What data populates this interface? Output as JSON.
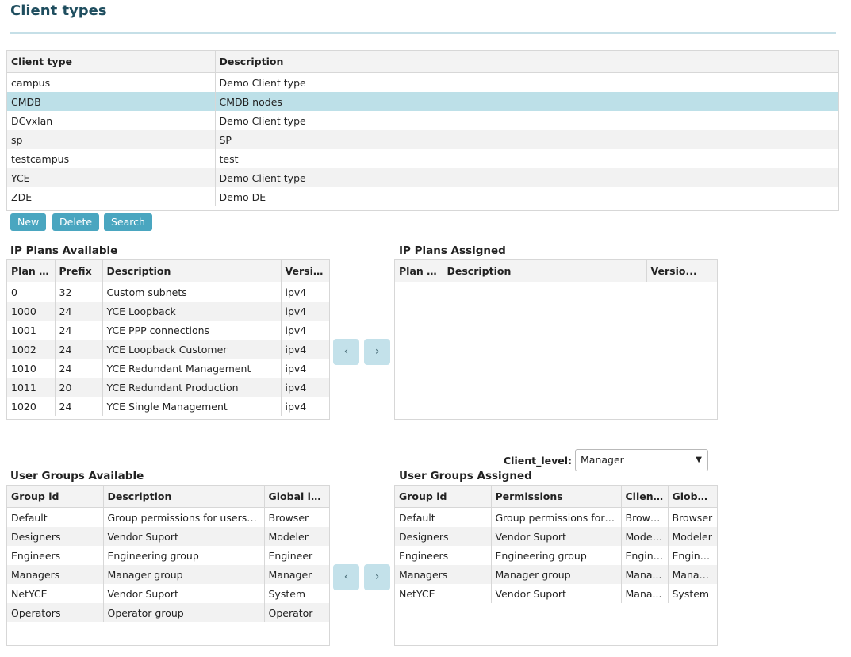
{
  "page": {
    "title": "Client types"
  },
  "client_types": {
    "columns": [
      "Client type",
      "Description"
    ],
    "rows": [
      [
        "campus",
        "Demo Client type"
      ],
      [
        "CMDB",
        "CMDB nodes"
      ],
      [
        "DCvxlan",
        "Demo Client type"
      ],
      [
        "sp",
        "SP"
      ],
      [
        "testcampus",
        "test"
      ],
      [
        "YCE",
        "Demo Client type"
      ],
      [
        "ZDE",
        "Demo DE"
      ]
    ],
    "selected_row": "CMDB"
  },
  "actions": {
    "new_label": "New",
    "delete_label": "Delete",
    "search_label": "Search"
  },
  "ip_plans_available": {
    "label": "IP Plans Available",
    "columns": [
      "Plan i...",
      "Prefix",
      "Description",
      "Versio..."
    ],
    "rows": [
      [
        "0",
        "32",
        "Custom subnets",
        "ipv4"
      ],
      [
        "1000",
        "24",
        "YCE Loopback",
        "ipv4"
      ],
      [
        "1001",
        "24",
        "YCE PPP connections",
        "ipv4"
      ],
      [
        "1002",
        "24",
        "YCE Loopback Customer",
        "ipv4"
      ],
      [
        "1010",
        "24",
        "YCE Redundant Management",
        "ipv4"
      ],
      [
        "1011",
        "20",
        "YCE Redundant Production",
        "ipv4"
      ],
      [
        "1020",
        "24",
        "YCE Single Management",
        "ipv4"
      ]
    ]
  },
  "ip_plans_assigned": {
    "label": "IP Plans Assigned",
    "columns": [
      "Plan i...",
      "Description",
      "Versio..."
    ],
    "rows": []
  },
  "move_controls": {
    "left": "‹",
    "right": "›"
  },
  "client_level": {
    "label": "Client_level:",
    "value": "Manager"
  },
  "user_groups_available": {
    "label": "User Groups Available",
    "columns": [
      "Group id",
      "Description",
      "Global lev..."
    ],
    "rows": [
      [
        "Default",
        "Group permissions for users wi...",
        "Browser"
      ],
      [
        "Designers",
        "Vendor Suport",
        "Modeler"
      ],
      [
        "Engineers",
        "Engineering group",
        "Engineer"
      ],
      [
        "Managers",
        "Manager group",
        "Manager"
      ],
      [
        "NetYCE",
        "Vendor Suport",
        "System"
      ],
      [
        "Operators",
        "Operator group",
        "Operator"
      ]
    ]
  },
  "user_groups_assigned": {
    "label": "User Groups Assigned",
    "columns": [
      "Group id",
      "Permissions",
      "Client ...",
      "Global..."
    ],
    "rows": [
      [
        "Default",
        "Group permissions for u...",
        "Browser",
        "Browser"
      ],
      [
        "Designers",
        "Vendor Suport",
        "Modeler",
        "Modeler"
      ],
      [
        "Engineers",
        "Engineering group",
        "Engine...",
        "Engine..."
      ],
      [
        "Managers",
        "Manager group",
        "Mana...",
        "Manag..."
      ],
      [
        "NetYCE",
        "Vendor Suport",
        "Mana...",
        "System"
      ]
    ]
  }
}
